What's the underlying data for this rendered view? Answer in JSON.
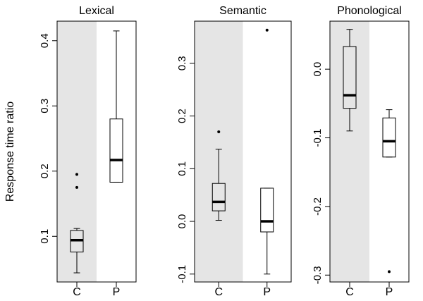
{
  "ylabel": "Response time ratio",
  "chart_data": [
    {
      "type": "box",
      "title": "Lexical",
      "categories": [
        "C",
        "P"
      ],
      "ylim": [
        0.03,
        0.43
      ],
      "yticks": [
        0.1,
        0.2,
        0.3,
        0.4
      ],
      "ytick_labels": [
        "0.1",
        "0.2",
        "0.3",
        "0.4"
      ],
      "shaded_category": "C",
      "boxes": [
        {
          "category": "C",
          "whisker_low": 0.044,
          "q1": 0.076,
          "median": 0.094,
          "q3": 0.109,
          "whisker_high": 0.112,
          "outliers": [
            0.175,
            0.195
          ]
        },
        {
          "category": "P",
          "whisker_low": 0.183,
          "q1": 0.183,
          "median": 0.217,
          "q3": 0.28,
          "whisker_high": 0.415,
          "outliers": []
        }
      ]
    },
    {
      "type": "box",
      "title": "Semantic",
      "categories": [
        "C",
        "P"
      ],
      "ylim": [
        -0.115,
        0.38
      ],
      "yticks": [
        -0.1,
        0.0,
        0.1,
        0.2,
        0.3
      ],
      "ytick_labels": [
        "-0.1",
        "0.0",
        "0.1",
        "0.2",
        "0.3"
      ],
      "shaded_category": "C",
      "boxes": [
        {
          "category": "C",
          "whisker_low": 0.002,
          "q1": 0.02,
          "median": 0.037,
          "q3": 0.072,
          "whisker_high": 0.137,
          "outliers": [
            0.17
          ]
        },
        {
          "category": "P",
          "whisker_low": -0.1,
          "q1": -0.02,
          "median": 0.0,
          "q3": 0.063,
          "whisker_high": 0.063,
          "outliers": [
            0.363
          ]
        }
      ]
    },
    {
      "type": "box",
      "title": "Phonological",
      "categories": [
        "C",
        "P"
      ],
      "ylim": [
        -0.31,
        0.07
      ],
      "yticks": [
        -0.3,
        -0.2,
        -0.1,
        0.0
      ],
      "ytick_labels": [
        "-0.3",
        "-0.2",
        "-0.1",
        "0.0"
      ],
      "shaded_category": "C",
      "boxes": [
        {
          "category": "C",
          "whisker_low": -0.09,
          "q1": -0.057,
          "median": -0.038,
          "q3": 0.033,
          "whisker_high": 0.058,
          "outliers": []
        },
        {
          "category": "P",
          "whisker_low": -0.128,
          "q1": -0.128,
          "median": -0.105,
          "q3": -0.071,
          "whisker_high": -0.059,
          "outliers": [
            -0.295
          ]
        }
      ]
    }
  ]
}
